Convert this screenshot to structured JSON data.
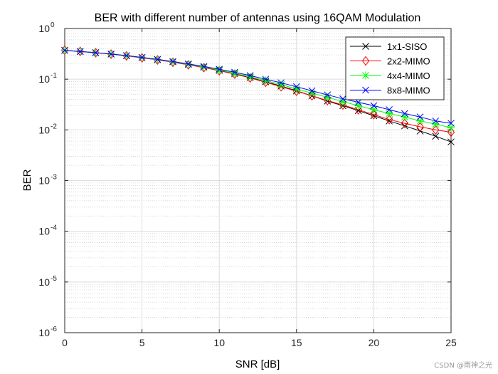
{
  "chart_data": {
    "type": "line",
    "title": "BER with different number of antennas using 16QAM Modulation",
    "xlabel": "SNR [dB]",
    "ylabel": "BER",
    "xlim": [
      0,
      25
    ],
    "ylim_exponents": [
      -6,
      0
    ],
    "yscale": "log",
    "grid": true,
    "legend_position": "top-right",
    "x_ticks": [
      0,
      5,
      10,
      15,
      20,
      25
    ],
    "y_ticks": [
      {
        "base": "10",
        "exp": "0"
      },
      {
        "base": "10",
        "exp": "-1"
      },
      {
        "base": "10",
        "exp": "-2"
      },
      {
        "base": "10",
        "exp": "-3"
      },
      {
        "base": "10",
        "exp": "-4"
      },
      {
        "base": "10",
        "exp": "-5"
      },
      {
        "base": "10",
        "exp": "-6"
      }
    ],
    "x": [
      0,
      1,
      2,
      3,
      4,
      5,
      6,
      7,
      8,
      9,
      10,
      11,
      12,
      13,
      14,
      15,
      16,
      17,
      18,
      19,
      20,
      21,
      22,
      23,
      24,
      25
    ],
    "series": [
      {
        "name": "1x1-SISO",
        "color": "#000000",
        "marker": "x",
        "values": [
          0.372,
          0.352,
          0.334,
          0.313,
          0.29,
          0.266,
          0.243,
          0.219,
          0.195,
          0.172,
          0.149,
          0.128,
          0.108,
          0.089,
          0.073,
          0.059,
          0.047,
          0.037,
          0.03,
          0.024,
          0.019,
          0.015,
          0.012,
          0.0095,
          0.0075,
          0.0058
        ]
      },
      {
        "name": "2x2-MIMO",
        "color": "#ff0000",
        "marker": "diamond",
        "values": [
          0.373,
          0.353,
          0.333,
          0.312,
          0.288,
          0.264,
          0.24,
          0.216,
          0.192,
          0.169,
          0.147,
          0.126,
          0.106,
          0.087,
          0.071,
          0.058,
          0.047,
          0.038,
          0.031,
          0.025,
          0.02,
          0.016,
          0.0135,
          0.0115,
          0.01,
          0.009
        ]
      },
      {
        "name": "4x4-MIMO",
        "color": "#00ff00",
        "marker": "star",
        "values": [
          0.371,
          0.352,
          0.333,
          0.313,
          0.291,
          0.268,
          0.244,
          0.22,
          0.197,
          0.174,
          0.152,
          0.131,
          0.112,
          0.094,
          0.078,
          0.064,
          0.053,
          0.044,
          0.036,
          0.03,
          0.025,
          0.021,
          0.018,
          0.015,
          0.013,
          0.011
        ]
      },
      {
        "name": "8x8-MIMO",
        "color": "#0000ff",
        "marker": "x",
        "values": [
          0.37,
          0.351,
          0.333,
          0.313,
          0.292,
          0.269,
          0.246,
          0.223,
          0.2,
          0.178,
          0.157,
          0.137,
          0.118,
          0.1,
          0.085,
          0.071,
          0.059,
          0.049,
          0.041,
          0.035,
          0.03,
          0.025,
          0.021,
          0.018,
          0.015,
          0.0135
        ]
      }
    ]
  },
  "watermark": "CSDN @雨神之光"
}
